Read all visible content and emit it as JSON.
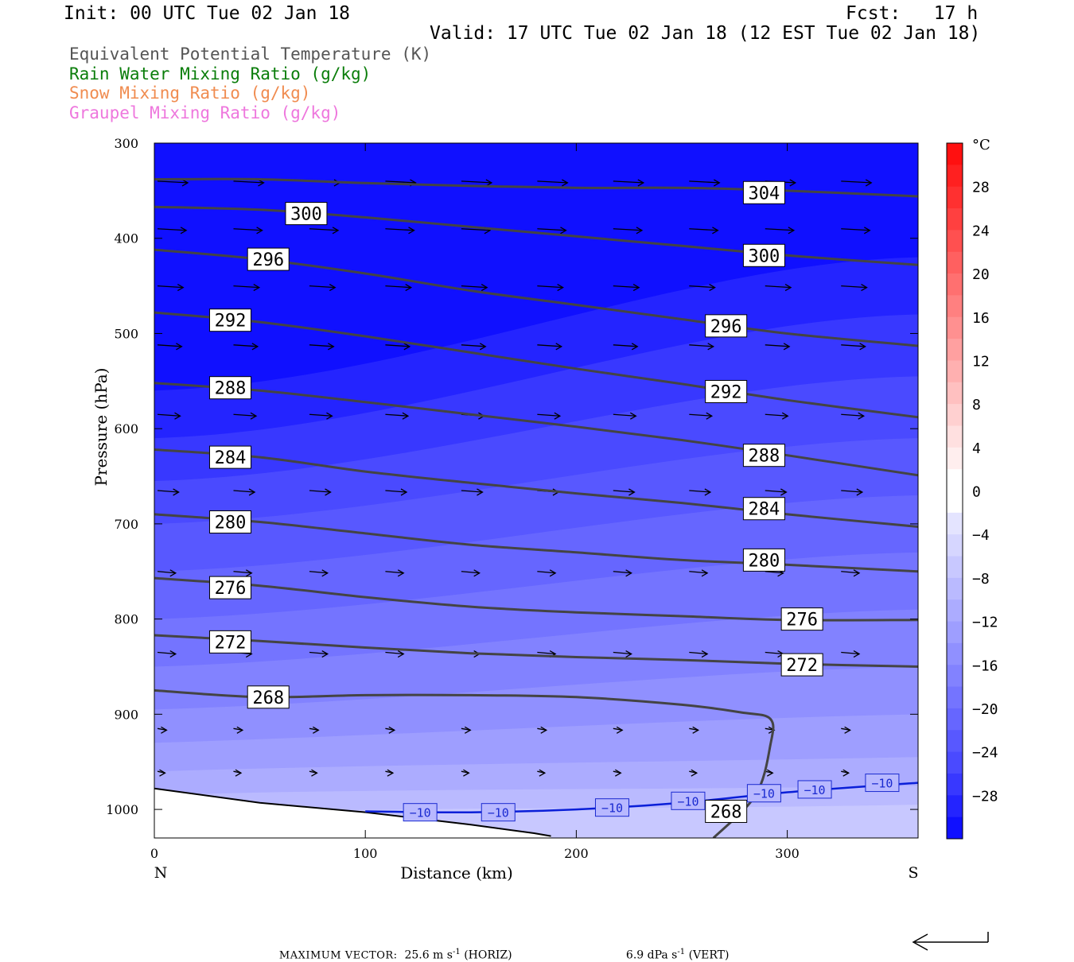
{
  "header": {
    "init": "Init: 00 UTC Tue 02 Jan 18",
    "fcst": "Fcst:   17 h",
    "valid": "Valid: 17 UTC Tue 02 Jan 18 (12 EST Tue 02 Jan 18)"
  },
  "legend": [
    {
      "text": "Equivalent Potential Temperature (K)",
      "color": "#555555"
    },
    {
      "text": "Rain Water Mixing Ratio (g/kg)",
      "color": "#0a7d0a"
    },
    {
      "text": "Snow Mixing Ratio (g/kg)",
      "color": "#f08c50"
    },
    {
      "text": "Graupel Mixing Ratio (g/kg)",
      "color": "#ee77dd"
    }
  ],
  "footer": {
    "max_vector_label": "MAXIMUM VECTOR:",
    "horiz": "25.6 m s",
    "horiz_unit": "(HORIZ)",
    "vert": "6.9 dPa s",
    "vert_unit": "(VERT)",
    "exp": "-1"
  },
  "chart_data": {
    "type": "cross-section",
    "xlabel": "Distance (km)",
    "ylabel": "Pressure (hPa)",
    "x_ticks": [
      0,
      100,
      200,
      300
    ],
    "xlim": [
      0,
      362
    ],
    "y_ticks": [
      300,
      400,
      500,
      600,
      700,
      800,
      900,
      1000
    ],
    "ylim": [
      300,
      1030
    ],
    "left_end_label": "N",
    "right_end_label": "S",
    "colorbar": {
      "unit": "°C",
      "labels": [
        "28",
        "24",
        "20",
        "16",
        "12",
        "8",
        "4",
        "0",
        "−4",
        "−8",
        "−12",
        "−16",
        "−20",
        "−24",
        "−28"
      ],
      "bin_edges": [
        32,
        30,
        28,
        26,
        24,
        22,
        20,
        18,
        16,
        14,
        12,
        10,
        8,
        6,
        4,
        2,
        0,
        -2,
        -4,
        -6,
        -8,
        -10,
        -12,
        -14,
        -16,
        -18,
        -20,
        -22,
        -24,
        -26,
        -28,
        -30,
        -32
      ],
      "warm_colors": [
        "#ff1010",
        "#ff2020",
        "#ff3030",
        "#ff4040",
        "#ff5050",
        "#ff6060",
        "#ff7070",
        "#ff8080",
        "#ff9090",
        "#ffa0a0",
        "#ffb0b0",
        "#ffc0c0",
        "#ffd0d0",
        "#ffe0e0",
        "#ffeeee",
        "#ffffff"
      ],
      "cold_colors": [
        "#ffffff",
        "#e4e4ff",
        "#d6d6ff",
        "#c8c8ff",
        "#babaff",
        "#acacff",
        "#9e9eff",
        "#9090ff",
        "#8282ff",
        "#7474ff",
        "#6666ff",
        "#5858ff",
        "#4a4aff",
        "#3838ff",
        "#2424ff",
        "#1010ff"
      ]
    },
    "theta_e_contours": [
      {
        "label": "304",
        "points": [
          [
            0,
            338
          ],
          [
            50,
            338
          ],
          [
            100,
            342
          ],
          [
            150,
            345
          ],
          [
            200,
            347
          ],
          [
            250,
            347
          ],
          [
            300,
            350
          ],
          [
            362,
            356
          ]
        ],
        "labels_at": [
          [
            289,
            352
          ]
        ]
      },
      {
        "label": "300",
        "points": [
          [
            0,
            367
          ],
          [
            50,
            370
          ],
          [
            100,
            378
          ],
          [
            150,
            388
          ],
          [
            200,
            398
          ],
          [
            250,
            408
          ],
          [
            300,
            418
          ],
          [
            362,
            428
          ]
        ],
        "labels_at": [
          [
            72,
            374
          ],
          [
            289,
            418
          ]
        ]
      },
      {
        "label": "296",
        "points": [
          [
            0,
            412
          ],
          [
            50,
            422
          ],
          [
            100,
            437
          ],
          [
            150,
            455
          ],
          [
            200,
            470
          ],
          [
            250,
            485
          ],
          [
            300,
            500
          ],
          [
            362,
            513
          ]
        ],
        "labels_at": [
          [
            54,
            422
          ],
          [
            271,
            492
          ]
        ]
      },
      {
        "label": "292",
        "points": [
          [
            0,
            478
          ],
          [
            50,
            488
          ],
          [
            100,
            503
          ],
          [
            150,
            520
          ],
          [
            200,
            537
          ],
          [
            250,
            553
          ],
          [
            300,
            570
          ],
          [
            362,
            588
          ]
        ],
        "labels_at": [
          [
            36,
            486
          ],
          [
            271,
            561
          ]
        ]
      },
      {
        "label": "288",
        "points": [
          [
            0,
            552
          ],
          [
            50,
            560
          ],
          [
            100,
            572
          ],
          [
            150,
            585
          ],
          [
            200,
            598
          ],
          [
            250,
            612
          ],
          [
            300,
            628
          ],
          [
            362,
            649
          ]
        ],
        "labels_at": [
          [
            36,
            557
          ],
          [
            289,
            628
          ]
        ]
      },
      {
        "label": "284",
        "points": [
          [
            0,
            622
          ],
          [
            50,
            630
          ],
          [
            100,
            645
          ],
          [
            150,
            657
          ],
          [
            200,
            668
          ],
          [
            250,
            678
          ],
          [
            300,
            690
          ],
          [
            362,
            703
          ]
        ],
        "labels_at": [
          [
            36,
            630
          ],
          [
            289,
            684
          ]
        ]
      },
      {
        "label": "280",
        "points": [
          [
            0,
            690
          ],
          [
            50,
            698
          ],
          [
            100,
            710
          ],
          [
            150,
            722
          ],
          [
            200,
            730
          ],
          [
            250,
            738
          ],
          [
            300,
            743
          ],
          [
            362,
            750
          ]
        ],
        "labels_at": [
          [
            36,
            698
          ],
          [
            289,
            738
          ]
        ]
      },
      {
        "label": "276",
        "points": [
          [
            0,
            757
          ],
          [
            50,
            765
          ],
          [
            100,
            777
          ],
          [
            150,
            787
          ],
          [
            200,
            793
          ],
          [
            250,
            797
          ],
          [
            300,
            801
          ],
          [
            362,
            801
          ]
        ],
        "labels_at": [
          [
            36,
            767
          ],
          [
            307,
            800
          ]
        ]
      },
      {
        "label": "272",
        "points": [
          [
            0,
            817
          ],
          [
            50,
            823
          ],
          [
            100,
            830
          ],
          [
            150,
            836
          ],
          [
            200,
            840
          ],
          [
            250,
            843
          ],
          [
            300,
            847
          ],
          [
            362,
            850
          ]
        ],
        "labels_at": [
          [
            36,
            824
          ],
          [
            307,
            848
          ]
        ]
      },
      {
        "label": "268",
        "points": [
          [
            0,
            875
          ],
          [
            50,
            882
          ],
          [
            100,
            880
          ],
          [
            150,
            880
          ],
          [
            200,
            882
          ],
          [
            250,
            890
          ],
          [
            278,
            898
          ],
          [
            292,
            905
          ],
          [
            292,
            932
          ],
          [
            285,
            985
          ],
          [
            265,
            1030
          ]
        ],
        "labels_at": [
          [
            54,
            882
          ],
          [
            271,
            1002
          ]
        ]
      }
    ],
    "isotherm_minus10": {
      "label": "−10",
      "points": [
        [
          100,
          1002
        ],
        [
          150,
          1003
        ],
        [
          200,
          1000
        ],
        [
          250,
          993
        ],
        [
          300,
          982
        ],
        [
          362,
          972
        ]
      ],
      "labels_at": [
        [
          126,
          1003
        ],
        [
          163,
          1003
        ],
        [
          217,
          998
        ],
        [
          253,
          991
        ],
        [
          289,
          983
        ],
        [
          313,
          979
        ],
        [
          345,
          972
        ]
      ]
    },
    "terrain": [
      [
        0,
        978
      ],
      [
        50,
        993
      ],
      [
        100,
        1003
      ],
      [
        150,
        1016
      ],
      [
        180,
        1025
      ],
      [
        188,
        1028
      ]
    ],
    "wind_vectors_note": "westerly flow, weakening toward surface",
    "wind_rows": [
      {
        "p": 340,
        "len": 1.0
      },
      {
        "p": 390,
        "len": 0.95
      },
      {
        "p": 450,
        "len": 0.85
      },
      {
        "p": 512,
        "len": 0.8
      },
      {
        "p": 585,
        "len": 0.75
      },
      {
        "p": 665,
        "len": 0.7
      },
      {
        "p": 750,
        "len": 0.6
      },
      {
        "p": 835,
        "len": 0.6
      },
      {
        "p": 915,
        "len": 0.3
      },
      {
        "p": 960,
        "len": 0.25
      }
    ],
    "max_vector_scale_arrow": true
  }
}
